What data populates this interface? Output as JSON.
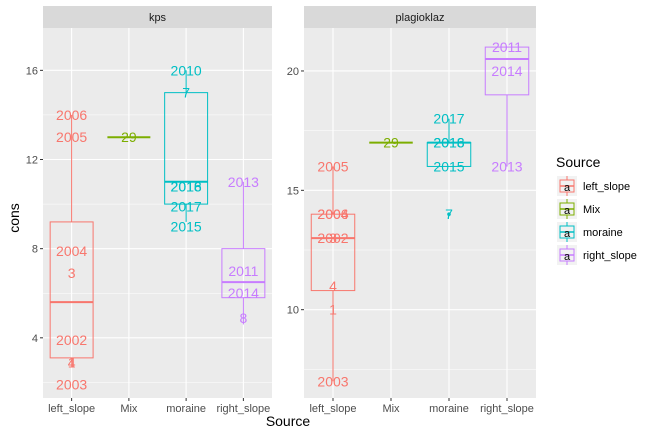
{
  "chart_data": [
    {
      "type": "boxplot",
      "facet": "kps",
      "xlabel": "Source",
      "ylabel": "cons",
      "categories": [
        "left_slope",
        "Mix",
        "moraine",
        "right_slope"
      ],
      "ylim": [
        1.3,
        17.9
      ],
      "yticks": [
        4,
        8,
        12,
        16
      ],
      "boxes": [
        {
          "category": "left_slope",
          "source": "left_slope",
          "lower": 3.1,
          "q1": 3.1,
          "median": 5.6,
          "q3": 9.2,
          "upper": 14.0
        },
        {
          "category": "Mix",
          "source": "Mix",
          "lower": 13.0,
          "q1": 13.0,
          "median": 13.0,
          "q3": 13.0,
          "upper": 13.0
        },
        {
          "category": "moraine",
          "source": "moraine",
          "lower": 9.2,
          "q1": 10.0,
          "median": 11.0,
          "q3": 15.0,
          "upper": 16.0
        },
        {
          "category": "right_slope",
          "source": "right_slope",
          "lower": 4.6,
          "q1": 5.8,
          "median": 6.5,
          "q3": 8.0,
          "upper": 11.0
        }
      ],
      "labels": [
        {
          "text": "2006",
          "category": "left_slope",
          "y": 14.0
        },
        {
          "text": "2005",
          "category": "left_slope",
          "y": 13.0
        },
        {
          "text": "2004",
          "category": "left_slope",
          "y": 7.9
        },
        {
          "text": "3",
          "category": "left_slope",
          "y": 6.9
        },
        {
          "text": "2002",
          "category": "left_slope",
          "y": 3.9
        },
        {
          "text": "4",
          "category": "left_slope",
          "y": 2.9
        },
        {
          "text": "1",
          "category": "left_slope",
          "y": 2.9
        },
        {
          "text": "2003",
          "category": "left_slope",
          "y": 1.9
        },
        {
          "text": "29",
          "category": "Mix",
          "y": 13.0
        },
        {
          "text": "2010",
          "category": "moraine",
          "y": 16.0
        },
        {
          "text": "7",
          "category": "moraine",
          "y": 15.0
        },
        {
          "text": "2018",
          "category": "moraine",
          "y": 10.8
        },
        {
          "text": "2016",
          "category": "moraine",
          "y": 10.8
        },
        {
          "text": "2017",
          "category": "moraine",
          "y": 9.9
        },
        {
          "text": "2015",
          "category": "moraine",
          "y": 9.0
        },
        {
          "text": "2013",
          "category": "right_slope",
          "y": 11.0
        },
        {
          "text": "2011",
          "category": "right_slope",
          "y": 7.0
        },
        {
          "text": "2014",
          "category": "right_slope",
          "y": 6.0
        },
        {
          "text": "8",
          "category": "right_slope",
          "y": 4.9
        }
      ]
    },
    {
      "type": "boxplot",
      "facet": "plagioklaz",
      "xlabel": "Source",
      "ylabel": "cons",
      "categories": [
        "left_slope",
        "Mix",
        "moraine",
        "right_slope"
      ],
      "ylim": [
        6.3,
        21.8
      ],
      "yticks": [
        10,
        15,
        20
      ],
      "boxes": [
        {
          "category": "left_slope",
          "source": "left_slope",
          "lower": 7.0,
          "q1": 10.8,
          "median": 13.0,
          "q3": 14.0,
          "upper": 16.0
        },
        {
          "category": "Mix",
          "source": "Mix",
          "lower": 17.0,
          "q1": 17.0,
          "median": 17.0,
          "q3": 17.0,
          "upper": 17.0
        },
        {
          "category": "moraine",
          "source": "moraine",
          "lower": 16.0,
          "q1": 16.0,
          "median": 17.0,
          "q3": 17.0,
          "upper": 18.0
        },
        {
          "category": "right_slope",
          "source": "right_slope",
          "lower": 16.0,
          "q1": 19.0,
          "median": 20.5,
          "q3": 21.0,
          "upper": 21.0
        }
      ],
      "outliers": [
        {
          "category": "moraine",
          "y": 14.0,
          "source": "moraine"
        }
      ],
      "labels": [
        {
          "text": "2005",
          "category": "left_slope",
          "y": 16.0
        },
        {
          "text": "2006",
          "category": "left_slope",
          "y": 14.0
        },
        {
          "text": "2004",
          "category": "left_slope",
          "y": 14.0
        },
        {
          "text": "2002",
          "category": "left_slope",
          "y": 13.0
        },
        {
          "text": "3",
          "category": "left_slope",
          "y": 13.0
        },
        {
          "text": "4",
          "category": "left_slope",
          "y": 11.0
        },
        {
          "text": "1",
          "category": "left_slope",
          "y": 10.0
        },
        {
          "text": "2003",
          "category": "left_slope",
          "y": 7.0
        },
        {
          "text": "29",
          "category": "Mix",
          "y": 17.0
        },
        {
          "text": "2017",
          "category": "moraine",
          "y": 18.0
        },
        {
          "text": "2018",
          "category": "moraine",
          "y": 17.0
        },
        {
          "text": "2016",
          "category": "moraine",
          "y": 17.0
        },
        {
          "text": "2015",
          "category": "moraine",
          "y": 16.0
        },
        {
          "text": "7",
          "category": "moraine",
          "y": 14.0
        },
        {
          "text": "2011",
          "category": "right_slope",
          "y": 21.0
        },
        {
          "text": "2014",
          "category": "right_slope",
          "y": 20.0
        },
        {
          "text": "2013",
          "category": "right_slope",
          "y": 16.0
        }
      ]
    }
  ],
  "legend": {
    "title": "Source",
    "placement": "right",
    "items": [
      {
        "label": "left_slope",
        "color": "#F8766D",
        "glyph": "a"
      },
      {
        "label": "Mix",
        "color": "#7CAE00",
        "glyph": "a"
      },
      {
        "label": "moraine",
        "color": "#00BFC4",
        "glyph": "a"
      },
      {
        "label": "right_slope",
        "color": "#C77CFF",
        "glyph": "a"
      }
    ]
  },
  "colors": {
    "left_slope": "#F8766D",
    "Mix": "#7CAE00",
    "moraine": "#00BFC4",
    "right_slope": "#C77CFF",
    "panel": "#EBEBEB",
    "strip": "#D9D9D9",
    "grid": "#FFFFFF"
  }
}
